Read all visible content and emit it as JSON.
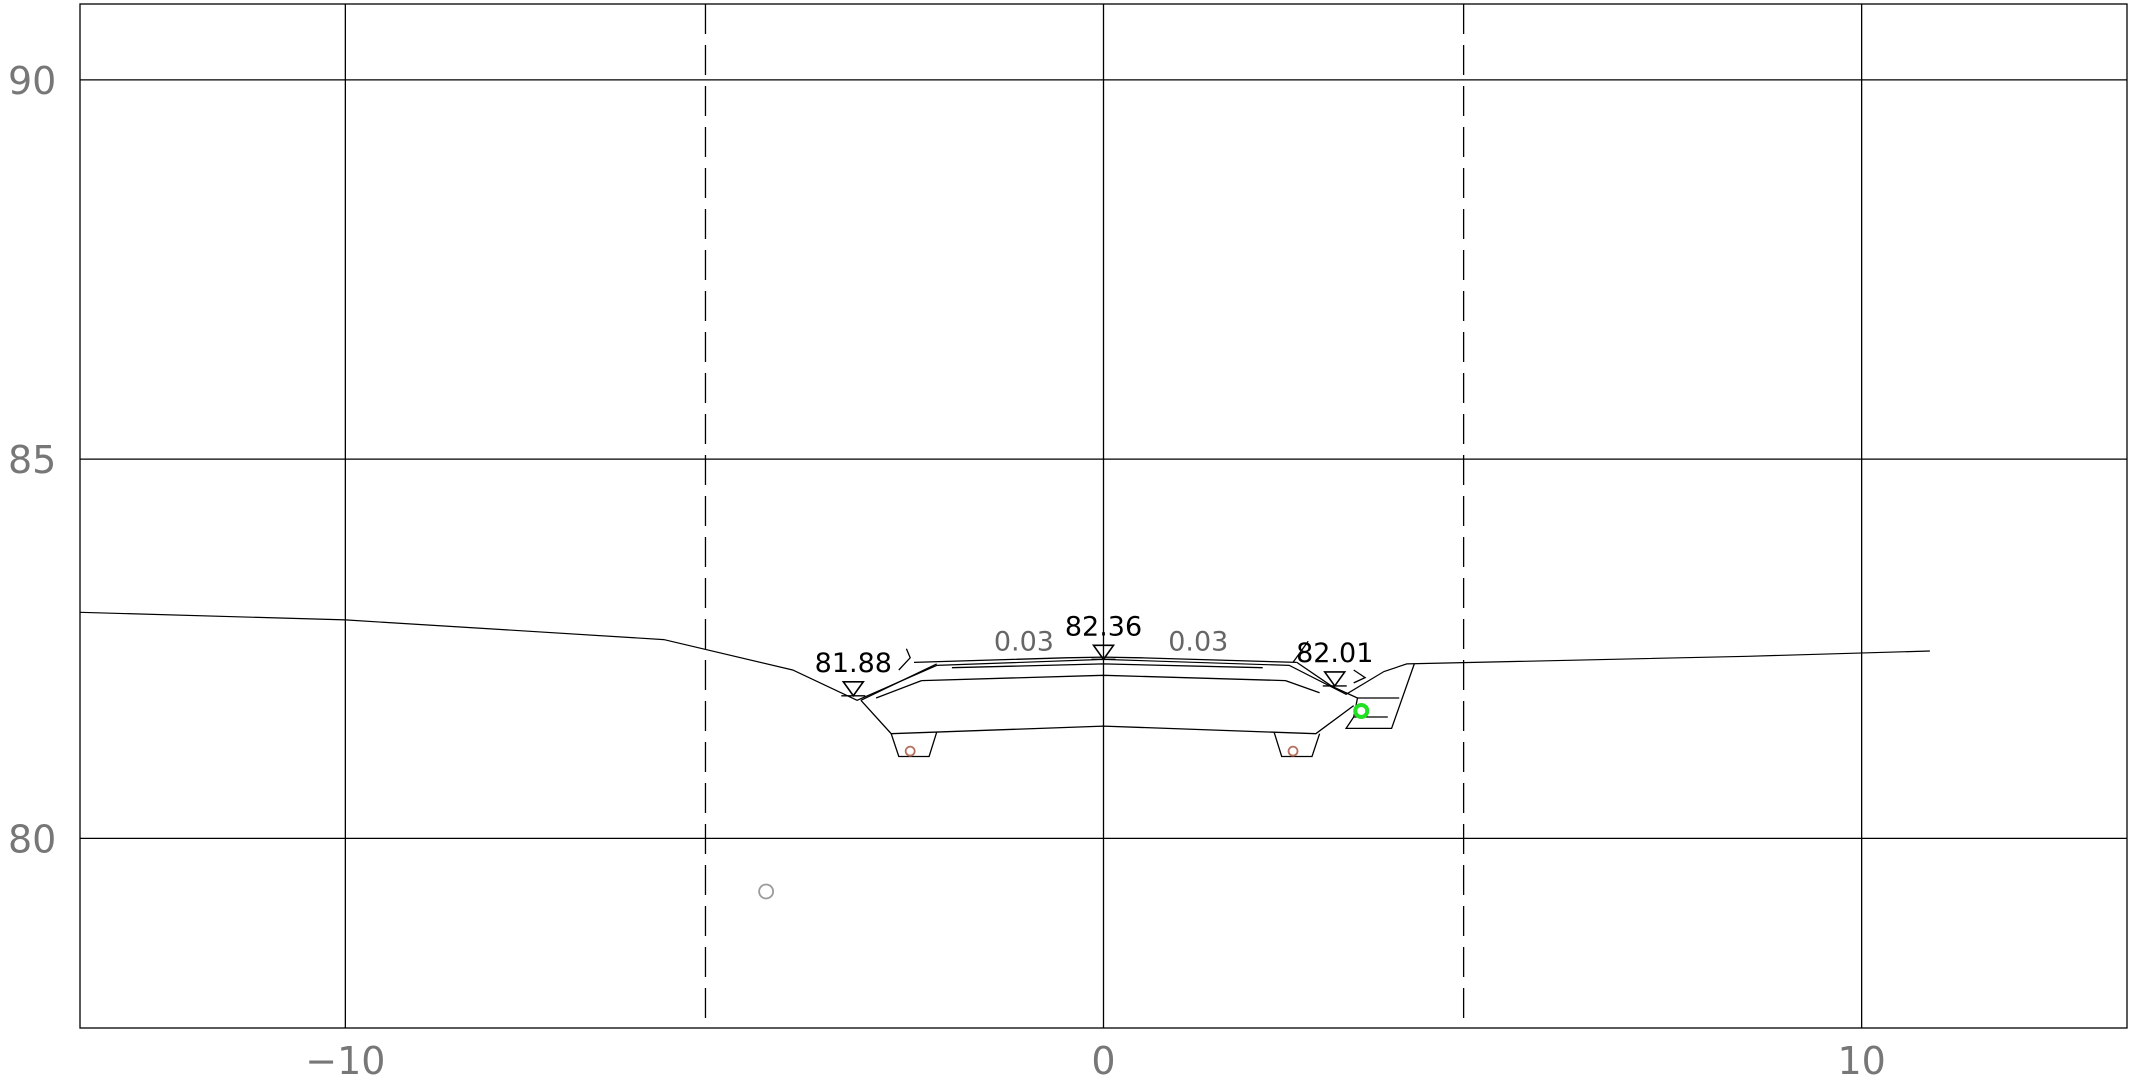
{
  "x_axis": {
    "ticks": [
      -10,
      0,
      10
    ],
    "range": [
      -13.5,
      13.5
    ]
  },
  "y_axis": {
    "ticks": [
      80,
      85,
      90
    ],
    "range": [
      77.5,
      91
    ]
  },
  "boundary_lines_x": [
    -5.25,
    4.75
  ],
  "ground_profile": [
    [
      -13.5,
      82.98
    ],
    [
      -10,
      82.88
    ],
    [
      -5.8,
      82.62
    ],
    [
      -4.1,
      82.22
    ],
    [
      -3.25,
      81.82
    ],
    [
      -2.2,
      82.28
    ],
    [
      0,
      82.36
    ],
    [
      2.45,
      82.28
    ],
    [
      3.2,
      81.9
    ],
    [
      3.7,
      82.2
    ],
    [
      4.0,
      82.3
    ],
    [
      8.5,
      82.4
    ],
    [
      10.9,
      82.47
    ]
  ],
  "elevation_markers": [
    {
      "x": -3.3,
      "y": 81.88,
      "label": "81.88"
    },
    {
      "x": 0.0,
      "y": 82.36,
      "label": "82.36"
    },
    {
      "x": 3.05,
      "y": 82.01,
      "label": "82.01"
    }
  ],
  "slope_labels": [
    {
      "x": -1.05,
      "y": 82.48,
      "label": "0.03"
    },
    {
      "x": 1.25,
      "y": 82.48,
      "label": "0.03"
    }
  ],
  "points": [
    {
      "x": -2.55,
      "y": 81.15,
      "color": "#b5715e",
      "kind": "drain-left"
    },
    {
      "x": 2.5,
      "y": 81.15,
      "color": "#b5715e",
      "kind": "drain-right"
    },
    {
      "x": 3.4,
      "y": 81.68,
      "color": "#22e022",
      "kind": "utility"
    },
    {
      "x": -4.45,
      "y": 79.3,
      "color": "#9a9a9a",
      "kind": "reference"
    }
  ]
}
